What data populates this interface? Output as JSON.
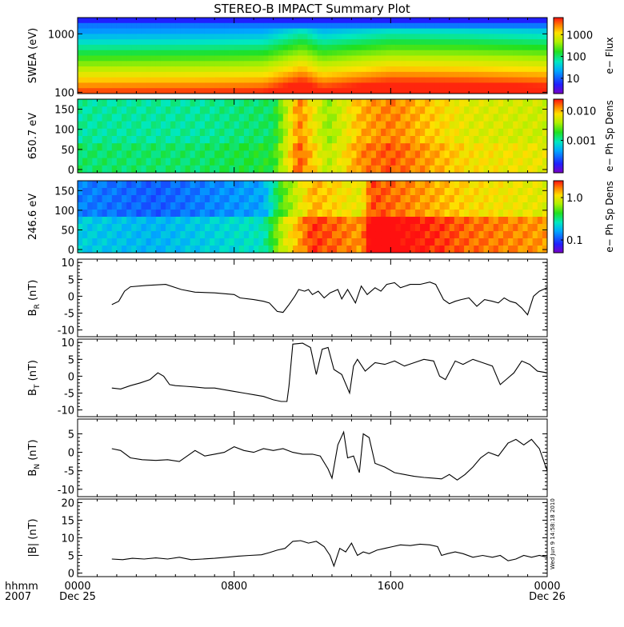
{
  "chart_data": {
    "type": "line",
    "title": "STEREO-B IMPACT Summary Plot",
    "corner_labels": {
      "unit": "hhmm",
      "year": "2007"
    },
    "time_ticks": [
      {
        "h": 0,
        "time": "0000",
        "date": "Dec 25"
      },
      {
        "h": 8,
        "time": "0800",
        "date": ""
      },
      {
        "h": 16,
        "time": "1600",
        "date": ""
      },
      {
        "h": 24,
        "time": "0000",
        "date": "Dec 26"
      }
    ],
    "xlim_hours": [
      0,
      24
    ],
    "data_start_hour": 1.75,
    "timestamp": "Wed Jun 9 14:58:18 2010",
    "spectrograms": [
      {
        "name": "SWEA",
        "ylabel": "SWEA (eV)",
        "ylog": true,
        "ylim": [
          95,
          1900
        ],
        "yticks": [
          {
            "v": 1000,
            "label": "1000"
          },
          {
            "v": 100,
            "label": "100"
          }
        ],
        "colorbar_label": "e− Flux",
        "colorbar_log": true,
        "colorbar_range": [
          2,
          6000
        ],
        "colorbar_ticks": [
          {
            "v": 1000,
            "label": "1000"
          },
          {
            "v": 100,
            "label": "100"
          },
          {
            "v": 10,
            "label": "10"
          }
        ],
        "colorbar_grid": [
          [
            0.95,
            0.9,
            0.85
          ],
          [
            0.8,
            0.75,
            0.7
          ],
          [
            0.55,
            0.5,
            0.45
          ],
          [
            0.35,
            0.3,
            0.25
          ],
          [
            0.15,
            0.12,
            0.1
          ]
        ],
        "bands": [
          {
            "h": 0,
            "level": 0.55
          },
          {
            "h": 6,
            "level": 0.58
          },
          {
            "h": 9.5,
            "level": 0.62
          },
          {
            "h": 11.5,
            "level": 0.95
          },
          {
            "h": 12.5,
            "level": 0.7
          },
          {
            "h": 14,
            "level": 0.8
          },
          {
            "h": 16,
            "level": 0.92
          },
          {
            "h": 20,
            "level": 0.88
          },
          {
            "h": 24,
            "level": 0.8
          }
        ]
      },
      {
        "name": "650",
        "ylabel": "650.7 eV",
        "ylog": false,
        "ylim": [
          -8,
          175
        ],
        "yticks": [
          {
            "v": 150,
            "label": "150"
          },
          {
            "v": 100,
            "label": "100"
          },
          {
            "v": 50,
            "label": "50"
          },
          {
            "v": 0,
            "label": "0"
          }
        ],
        "colorbar_label": "e− Ph Sp Dens",
        "colorbar_log": true,
        "colorbar_range": [
          8e-05,
          0.025
        ],
        "colorbar_ticks": [
          {
            "v": 0.01,
            "label": "0.010"
          },
          {
            "v": 0.001,
            "label": "0.001"
          }
        ],
        "bands": [
          {
            "h": 0,
            "level": 0.45
          },
          {
            "h": 6,
            "level": 0.45
          },
          {
            "h": 10,
            "level": 0.5
          },
          {
            "h": 11.3,
            "level": 0.9
          },
          {
            "h": 12.8,
            "level": 0.65
          },
          {
            "h": 14.5,
            "level": 0.85
          },
          {
            "h": 16,
            "level": 0.9
          },
          {
            "h": 20,
            "level": 0.75
          },
          {
            "h": 24,
            "level": 0.72
          }
        ]
      },
      {
        "name": "246",
        "ylabel": "246.6 eV",
        "ylog": false,
        "ylim": [
          -8,
          175
        ],
        "yticks": [
          {
            "v": 150,
            "label": "150"
          },
          {
            "v": 100,
            "label": "100"
          },
          {
            "v": 50,
            "label": "50"
          },
          {
            "v": 0,
            "label": "0"
          }
        ],
        "colorbar_label": "e− Ph Sp Dens",
        "colorbar_log": true,
        "colorbar_range": [
          0.05,
          2.5
        ],
        "colorbar_ticks": [
          {
            "v": 1.0,
            "label": "1.0"
          },
          {
            "v": 0.1,
            "label": "0.1"
          }
        ],
        "bands": [
          {
            "h": 0,
            "level": 0.25
          },
          {
            "h": 4,
            "level": 0.2
          },
          {
            "h": 9.5,
            "level": 0.3
          },
          {
            "h": 10.5,
            "level": 0.6
          },
          {
            "h": 12,
            "level": 0.85
          },
          {
            "h": 14.5,
            "level": 0.75
          },
          {
            "h": 15,
            "level": 0.95
          },
          {
            "h": 20,
            "level": 0.8
          },
          {
            "h": 24,
            "level": 0.75
          }
        ]
      }
    ],
    "series": [
      {
        "name": "BR",
        "ylabel_main": "B",
        "ylabel_sub": "R",
        "ylabel_unit": " (nT)",
        "ylim": [
          -12,
          11
        ],
        "yticks": [
          10,
          5,
          0,
          -5,
          -10
        ],
        "x": [
          1.75,
          2.1,
          2.4,
          2.7,
          3.5,
          4.5,
          5.3,
          6.0,
          7.0,
          8.0,
          8.3,
          9.0,
          9.5,
          9.8,
          10.2,
          10.5,
          10.8,
          11.1,
          11.3,
          11.6,
          11.8,
          12.0,
          12.3,
          12.6,
          12.9,
          13.3,
          13.5,
          13.8,
          14.2,
          14.5,
          14.8,
          15.2,
          15.5,
          15.8,
          16.2,
          16.5,
          17.0,
          17.5,
          18.0,
          18.3,
          18.7,
          19.0,
          19.3,
          19.6,
          20.0,
          20.4,
          20.8,
          21.2,
          21.5,
          21.8,
          22.1,
          22.4,
          22.7,
          23.0,
          23.3,
          23.6,
          24.0
        ],
        "y": [
          -2.5,
          -1.5,
          1.5,
          2.8,
          3.2,
          3.5,
          2.0,
          1.2,
          1.0,
          0.5,
          -0.5,
          -1.0,
          -1.5,
          -2.0,
          -4.5,
          -4.8,
          -2.5,
          0.0,
          2.0,
          1.5,
          2.0,
          0.5,
          1.5,
          -0.5,
          1.0,
          2.0,
          -0.8,
          2.0,
          -2.0,
          3.0,
          0.5,
          2.5,
          1.5,
          3.5,
          4.0,
          2.5,
          3.5,
          3.5,
          4.2,
          3.5,
          -1.0,
          -2.2,
          -1.5,
          -1.0,
          -0.5,
          -3.0,
          -1.0,
          -1.5,
          -2.0,
          -0.5,
          -1.5,
          -2.0,
          -3.5,
          -5.5,
          0.0,
          1.5,
          2.5
        ]
      },
      {
        "name": "BT",
        "ylabel_main": "B",
        "ylabel_sub": "T",
        "ylabel_unit": " (nT)",
        "ylim": [
          -12,
          11
        ],
        "yticks": [
          10,
          5,
          0,
          -5,
          -10
        ],
        "x": [
          1.75,
          2.2,
          2.7,
          3.2,
          3.7,
          4.1,
          4.4,
          4.7,
          5.0,
          5.5,
          6.0,
          6.5,
          7.0,
          7.5,
          8.0,
          8.5,
          9.0,
          9.5,
          10.0,
          10.4,
          10.7,
          10.8,
          11.0,
          11.5,
          11.9,
          12.2,
          12.5,
          12.8,
          13.1,
          13.5,
          13.9,
          14.1,
          14.3,
          14.7,
          15.2,
          15.7,
          16.2,
          16.7,
          17.2,
          17.7,
          18.2,
          18.5,
          18.8,
          19.3,
          19.7,
          20.2,
          20.7,
          21.2,
          21.6,
          22.0,
          22.3,
          22.7,
          23.1,
          23.5,
          24.0
        ],
        "y": [
          -3.5,
          -3.8,
          -2.8,
          -2.0,
          -1.0,
          1.0,
          0.0,
          -2.5,
          -2.8,
          -3.0,
          -3.2,
          -3.5,
          -3.5,
          -4.0,
          -4.5,
          -5.0,
          -5.5,
          -6.0,
          -7.0,
          -7.5,
          -7.5,
          -3.0,
          9.5,
          9.8,
          8.5,
          0.5,
          8.0,
          8.5,
          2.0,
          0.5,
          -5.0,
          3.0,
          5.0,
          1.5,
          4.0,
          3.5,
          4.5,
          3.0,
          4.0,
          5.0,
          4.5,
          0.0,
          -1.0,
          4.5,
          3.5,
          5.0,
          4.0,
          3.0,
          -2.5,
          -0.5,
          1.0,
          4.5,
          3.5,
          1.5,
          1.0
        ]
      },
      {
        "name": "BN",
        "ylabel_main": "B",
        "ylabel_sub": "N",
        "ylabel_unit": " (nT)",
        "ylim": [
          -12,
          9
        ],
        "yticks": [
          5,
          0,
          -5,
          -10
        ],
        "x": [
          1.75,
          2.2,
          2.7,
          3.3,
          4.0,
          4.6,
          5.2,
          5.6,
          6.0,
          6.5,
          7.0,
          7.5,
          8.0,
          8.5,
          9.0,
          9.5,
          10.0,
          10.5,
          11.0,
          11.5,
          12.0,
          12.4,
          12.8,
          13.0,
          13.3,
          13.6,
          13.8,
          14.1,
          14.4,
          14.6,
          14.9,
          15.2,
          15.7,
          16.2,
          16.7,
          17.2,
          17.7,
          18.2,
          18.6,
          19.0,
          19.4,
          19.8,
          20.2,
          20.6,
          21.0,
          21.5,
          22.0,
          22.4,
          22.8,
          23.2,
          23.6,
          24.0
        ],
        "y": [
          1.0,
          0.5,
          -1.5,
          -2.0,
          -2.2,
          -2.0,
          -2.5,
          -1.0,
          0.5,
          -1.0,
          -0.5,
          0.0,
          1.5,
          0.5,
          0.0,
          1.0,
          0.5,
          1.0,
          0.0,
          -0.5,
          -0.5,
          -1.0,
          -4.5,
          -7.0,
          2.0,
          5.5,
          -1.5,
          -1.0,
          -5.5,
          5.0,
          4.0,
          -3.0,
          -4.0,
          -5.5,
          -6.0,
          -6.5,
          -6.8,
          -7.0,
          -7.2,
          -6.0,
          -7.5,
          -6.0,
          -4.0,
          -1.5,
          0.0,
          -1.0,
          2.5,
          3.5,
          2.0,
          3.5,
          1.0,
          -5.0
        ]
      },
      {
        "name": "Bmag",
        "ylabel_main": "|B|",
        "ylabel_sub": "",
        "ylabel_unit": " (nT)",
        "ylim": [
          -1,
          21
        ],
        "yticks": [
          20,
          15,
          10,
          5,
          0
        ],
        "x": [
          1.75,
          2.3,
          2.8,
          3.4,
          4.0,
          4.6,
          5.2,
          5.8,
          6.4,
          7.0,
          7.6,
          8.2,
          8.8,
          9.4,
          9.8,
          10.2,
          10.6,
          11.0,
          11.4,
          11.8,
          12.2,
          12.6,
          12.9,
          13.1,
          13.4,
          13.7,
          14.0,
          14.3,
          14.6,
          14.9,
          15.3,
          15.7,
          16.1,
          16.5,
          17.0,
          17.5,
          18.0,
          18.4,
          18.6,
          18.9,
          19.3,
          19.7,
          20.2,
          20.7,
          21.2,
          21.6,
          22.0,
          22.4,
          22.8,
          23.2,
          23.6,
          24.0
        ],
        "y": [
          4.0,
          3.8,
          4.2,
          4.0,
          4.3,
          4.0,
          4.5,
          3.8,
          4.0,
          4.2,
          4.5,
          4.8,
          5.0,
          5.2,
          5.8,
          6.5,
          7.0,
          9.0,
          9.2,
          8.5,
          9.0,
          7.5,
          5.0,
          2.0,
          7.0,
          6.0,
          8.5,
          5.0,
          6.0,
          5.5,
          6.5,
          7.0,
          7.5,
          8.0,
          7.8,
          8.2,
          8.0,
          7.5,
          5.0,
          5.5,
          6.0,
          5.5,
          4.5,
          5.0,
          4.5,
          5.0,
          3.5,
          4.0,
          5.0,
          4.5,
          5.0,
          4.5
        ]
      }
    ]
  }
}
